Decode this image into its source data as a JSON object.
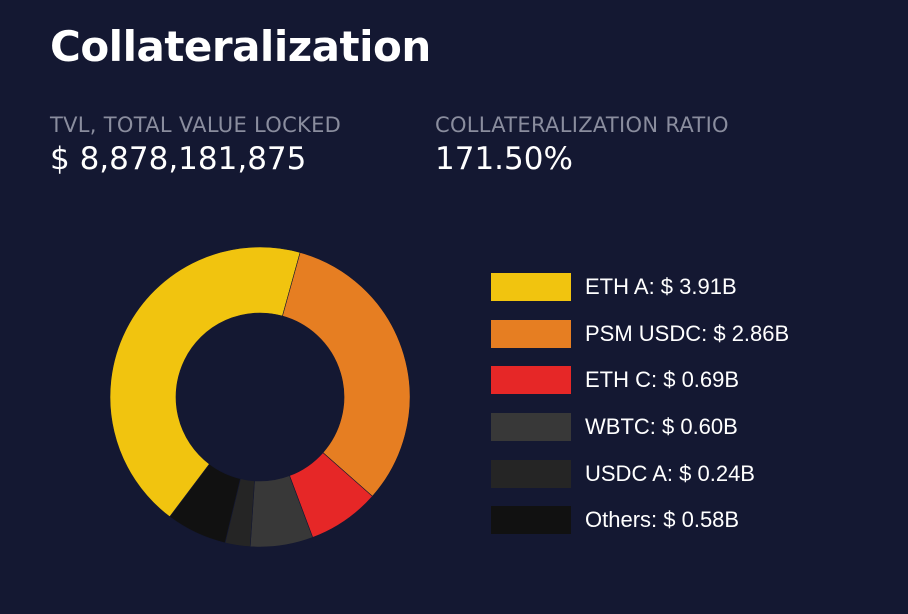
{
  "title": "Collateralization",
  "stats": {
    "tvl": {
      "label": "TVL, TOTAL VALUE LOCKED",
      "value": "$ 8,878,181,875"
    },
    "ratio": {
      "label": "COLLATERALIZATION RATIO",
      "value": "171.50%"
    }
  },
  "chart_data": {
    "type": "pie",
    "donut": true,
    "unit": "$B",
    "legend_position": "right",
    "categories": [
      "ETH A",
      "PSM USDC",
      "ETH C",
      "WBTC",
      "USDC A",
      "Others"
    ],
    "values": [
      3.91,
      2.86,
      0.69,
      0.6,
      0.24,
      0.58
    ],
    "colors": [
      "#f1c40f",
      "#e67e22",
      "#e62727",
      "#383838",
      "#252525",
      "#111111"
    ],
    "legend_labels": [
      "ETH A: $ 3.91B",
      "PSM USDC: $ 2.86B",
      "ETH C: $ 0.69B",
      "WBTC: $ 0.60B",
      "USDC A: $ 0.24B",
      "Others: $ 0.58B"
    ]
  }
}
